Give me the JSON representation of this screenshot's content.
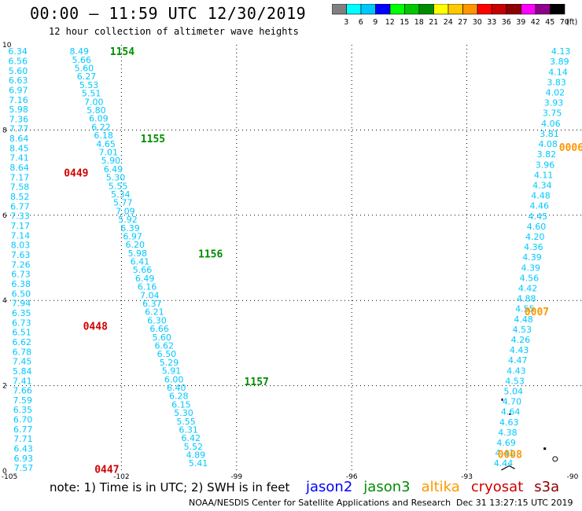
{
  "header": {
    "title": "00:00 – 11:59 UTC 12/30/2019",
    "subtitle": "12 hour collection of altimeter wave heights"
  },
  "colorbar": {
    "labels": [
      "3",
      "6",
      "9",
      "12",
      "15",
      "18",
      "21",
      "24",
      "27",
      "30",
      "33",
      "36",
      "39",
      "42",
      "45",
      "70"
    ],
    "unit": "(ft)",
    "colors": [
      "#808080",
      "#00ffff",
      "#00c8ff",
      "#0000ff",
      "#00ff00",
      "#00c800",
      "#008c00",
      "#ffff00",
      "#ffc800",
      "#ff9600",
      "#ff0000",
      "#c80000",
      "#8c0000",
      "#ff00ff",
      "#8c008c",
      "#000000"
    ]
  },
  "footer": {
    "note": "note: 1) Time is in UTC; 2) SWH is in feet",
    "credit": "NOAA/NESDIS Center for Satellite Applications and Research",
    "timestamp": "Dec 31 13:27:15 UTC 2019"
  },
  "legend": [
    {
      "name": "jason2",
      "color": "#0000ff"
    },
    {
      "name": "jason3",
      "color": "#008c00"
    },
    {
      "name": "altika",
      "color": "#ff9600"
    },
    {
      "name": "cryosat",
      "color": "#d00000"
    },
    {
      "name": "s3a",
      "color": "#8c0000"
    }
  ],
  "chart_data": {
    "type": "scatter",
    "xlim": [
      -105,
      -90
    ],
    "ylim": [
      0,
      10
    ],
    "xticks": [
      "-105",
      "-102",
      "-99",
      "-96",
      "-93",
      "-90"
    ],
    "yticks": [
      "0",
      "2",
      "4",
      "6",
      "8",
      "10"
    ],
    "grid": true,
    "value_color": "#00c8ff",
    "tracks": [
      {
        "x0": -104.7,
        "x1": -104.55,
        "y0": 9.85,
        "y1": 0.07,
        "values": [
          "6.34",
          "6.56",
          "5.60",
          "6.63",
          "6.97",
          "7.16",
          "5.98",
          "7.36",
          "7.77",
          "8.64",
          "8.45",
          "7.41",
          "8.64",
          "7.17",
          "7.58",
          "8.52",
          "6.77",
          "7.33",
          "7.17",
          "7.14",
          "8.03",
          "7.63",
          "7.26",
          "6.73",
          "6.38",
          "6.50",
          "7.94",
          "6.35",
          "6.73",
          "6.51",
          "6.62",
          "6.78",
          "7.45",
          "5.84",
          "7.41",
          "7.66",
          "7.59",
          "6.35",
          "6.70",
          "6.77",
          "7.71",
          "6.43",
          "6.93",
          "7.57"
        ]
      },
      {
        "x0": -103.1,
        "x1": -100.0,
        "y0": 9.85,
        "y1": 0.18,
        "values": [
          "8.49",
          "5.66",
          "5.60",
          "6.27",
          "5.53",
          "5.51",
          "7.00",
          "5.80",
          "6.09",
          "6.22",
          "6.18",
          "4.65",
          "7.01",
          "5.90",
          "6.49",
          "5.30",
          "5.55",
          "5.34",
          "5.77",
          "7.09",
          "5.92",
          "6.39",
          "6.97",
          "6.20",
          "5.98",
          "6.41",
          "5.66",
          "6.49",
          "6.16",
          "7.04",
          "6.37",
          "6.21",
          "6.30",
          "6.66",
          "5.60",
          "6.62",
          "6.50",
          "5.29",
          "5.91",
          "6.00",
          "6.40",
          "6.28",
          "6.15",
          "5.30",
          "5.55",
          "6.31",
          "6.42",
          "5.52",
          "4.89",
          "5.41"
        ]
      },
      {
        "x0": -90.55,
        "x1": -92.05,
        "y0": 9.85,
        "y1": 0.18,
        "values": [
          "4.13",
          "3.89",
          "4.14",
          "3.83",
          "4.02",
          "3.93",
          "3.75",
          "4.06",
          "3.81",
          "4.08",
          "3.82",
          "3.96",
          "4.11",
          "4.34",
          "4.48",
          "4.46",
          "4.45",
          "4.60",
          "4.20",
          "4.36",
          "4.39",
          "4.39",
          "4.56",
          "4.42",
          "4.88",
          "4.55",
          "4.48",
          "4.53",
          "4.26",
          "4.43",
          "4.47",
          "4.43",
          "4.53",
          "5.04",
          "4.70",
          "4.64",
          "4.63",
          "4.38",
          "4.69",
          "4.41",
          "4.44"
        ]
      }
    ],
    "time_labels": [
      {
        "text": "1154",
        "x": -102.3,
        "y": 9.85,
        "color": "#008c00"
      },
      {
        "text": "1155",
        "x": -101.5,
        "y": 7.8,
        "color": "#008c00"
      },
      {
        "text": "1156",
        "x": -100.0,
        "y": 5.1,
        "color": "#008c00"
      },
      {
        "text": "1157",
        "x": -98.8,
        "y": 2.1,
        "color": "#008c00"
      },
      {
        "text": "0449",
        "x": -103.5,
        "y": 7.0,
        "color": "#d00000"
      },
      {
        "text": "0448",
        "x": -103.0,
        "y": 3.4,
        "color": "#d00000"
      },
      {
        "text": "0447",
        "x": -102.7,
        "y": 0.05,
        "color": "#d00000"
      },
      {
        "text": "0006",
        "x": -90.6,
        "y": 7.6,
        "color": "#ff9600"
      },
      {
        "text": "0007",
        "x": -91.5,
        "y": 3.75,
        "color": "#ff9600"
      },
      {
        "text": "0008",
        "x": -92.2,
        "y": 0.4,
        "color": "#ff9600"
      }
    ]
  }
}
